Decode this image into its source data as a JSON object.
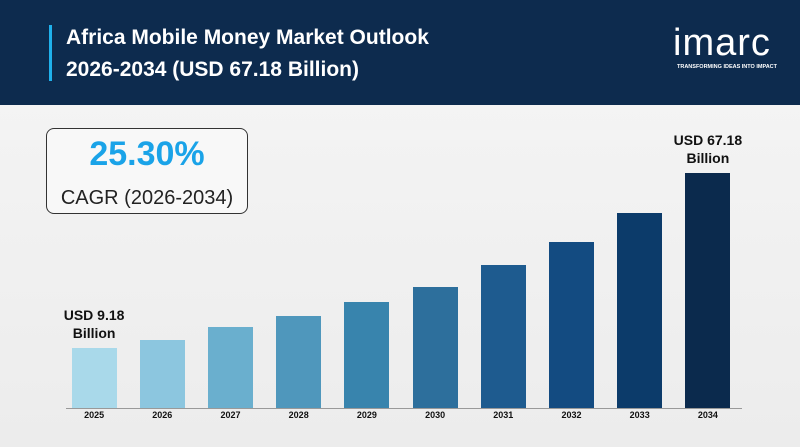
{
  "header": {
    "title": "Africa Mobile Money Market Outlook",
    "subtitle": "2026-2034 (USD 67.18 Billion)",
    "brand": "imarc",
    "tagline": "TRANSFORMING IDEAS INTO IMPACT"
  },
  "chart_data": {
    "type": "bar",
    "annotations": [
      "25.30%",
      "CAGR (2026-2034)"
    ],
    "categories": [
      "2025",
      "2026",
      "2027",
      "2028",
      "2029",
      "2030",
      "2031",
      "2032",
      "2033",
      "2034"
    ],
    "values": [
      9.18,
      11.8,
      16.1,
      19.8,
      24.4,
      29.4,
      36.7,
      44.3,
      53.9,
      67.18
    ],
    "value_labels": [
      "USD 9.18 Billion",
      null,
      null,
      null,
      null,
      null,
      null,
      null,
      null,
      "USD 67.18 Billion"
    ],
    "colors": [
      "#a9d9ea",
      "#8cc6df",
      "#6aafce",
      "#4f97bc",
      "#3884ad",
      "#2d6f9c",
      "#1e5b8f",
      "#134b81",
      "#0c3b6a",
      "#0b2a4d"
    ]
  }
}
